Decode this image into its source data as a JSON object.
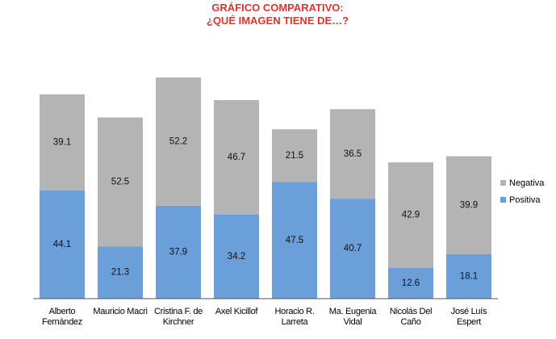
{
  "chart_data": {
    "type": "bar",
    "stacked": true,
    "title": "GRÁFICO COMPARATIVO: ¿QUÉ IMAGEN TIENE DE…?",
    "categories": [
      "Alberto Fernández",
      "Mauricio Macri",
      "Cristina F. de Kirchner",
      "Axel Kicillof",
      "Horacio R. Larreta",
      "Ma. Eugenia Vidal",
      "Nicolás Del Caño",
      "José Luís Espert"
    ],
    "series": [
      {
        "name": "Positiva",
        "color": "#6a9fd9",
        "values": [
          44.1,
          21.3,
          37.9,
          34.2,
          47.5,
          40.7,
          12.6,
          18.1
        ]
      },
      {
        "name": "Negativa",
        "color": "#b4b4b4",
        "values": [
          39.1,
          52.5,
          52.2,
          46.7,
          21.5,
          36.5,
          42.9,
          39.9
        ]
      }
    ],
    "legend": "right"
  }
}
